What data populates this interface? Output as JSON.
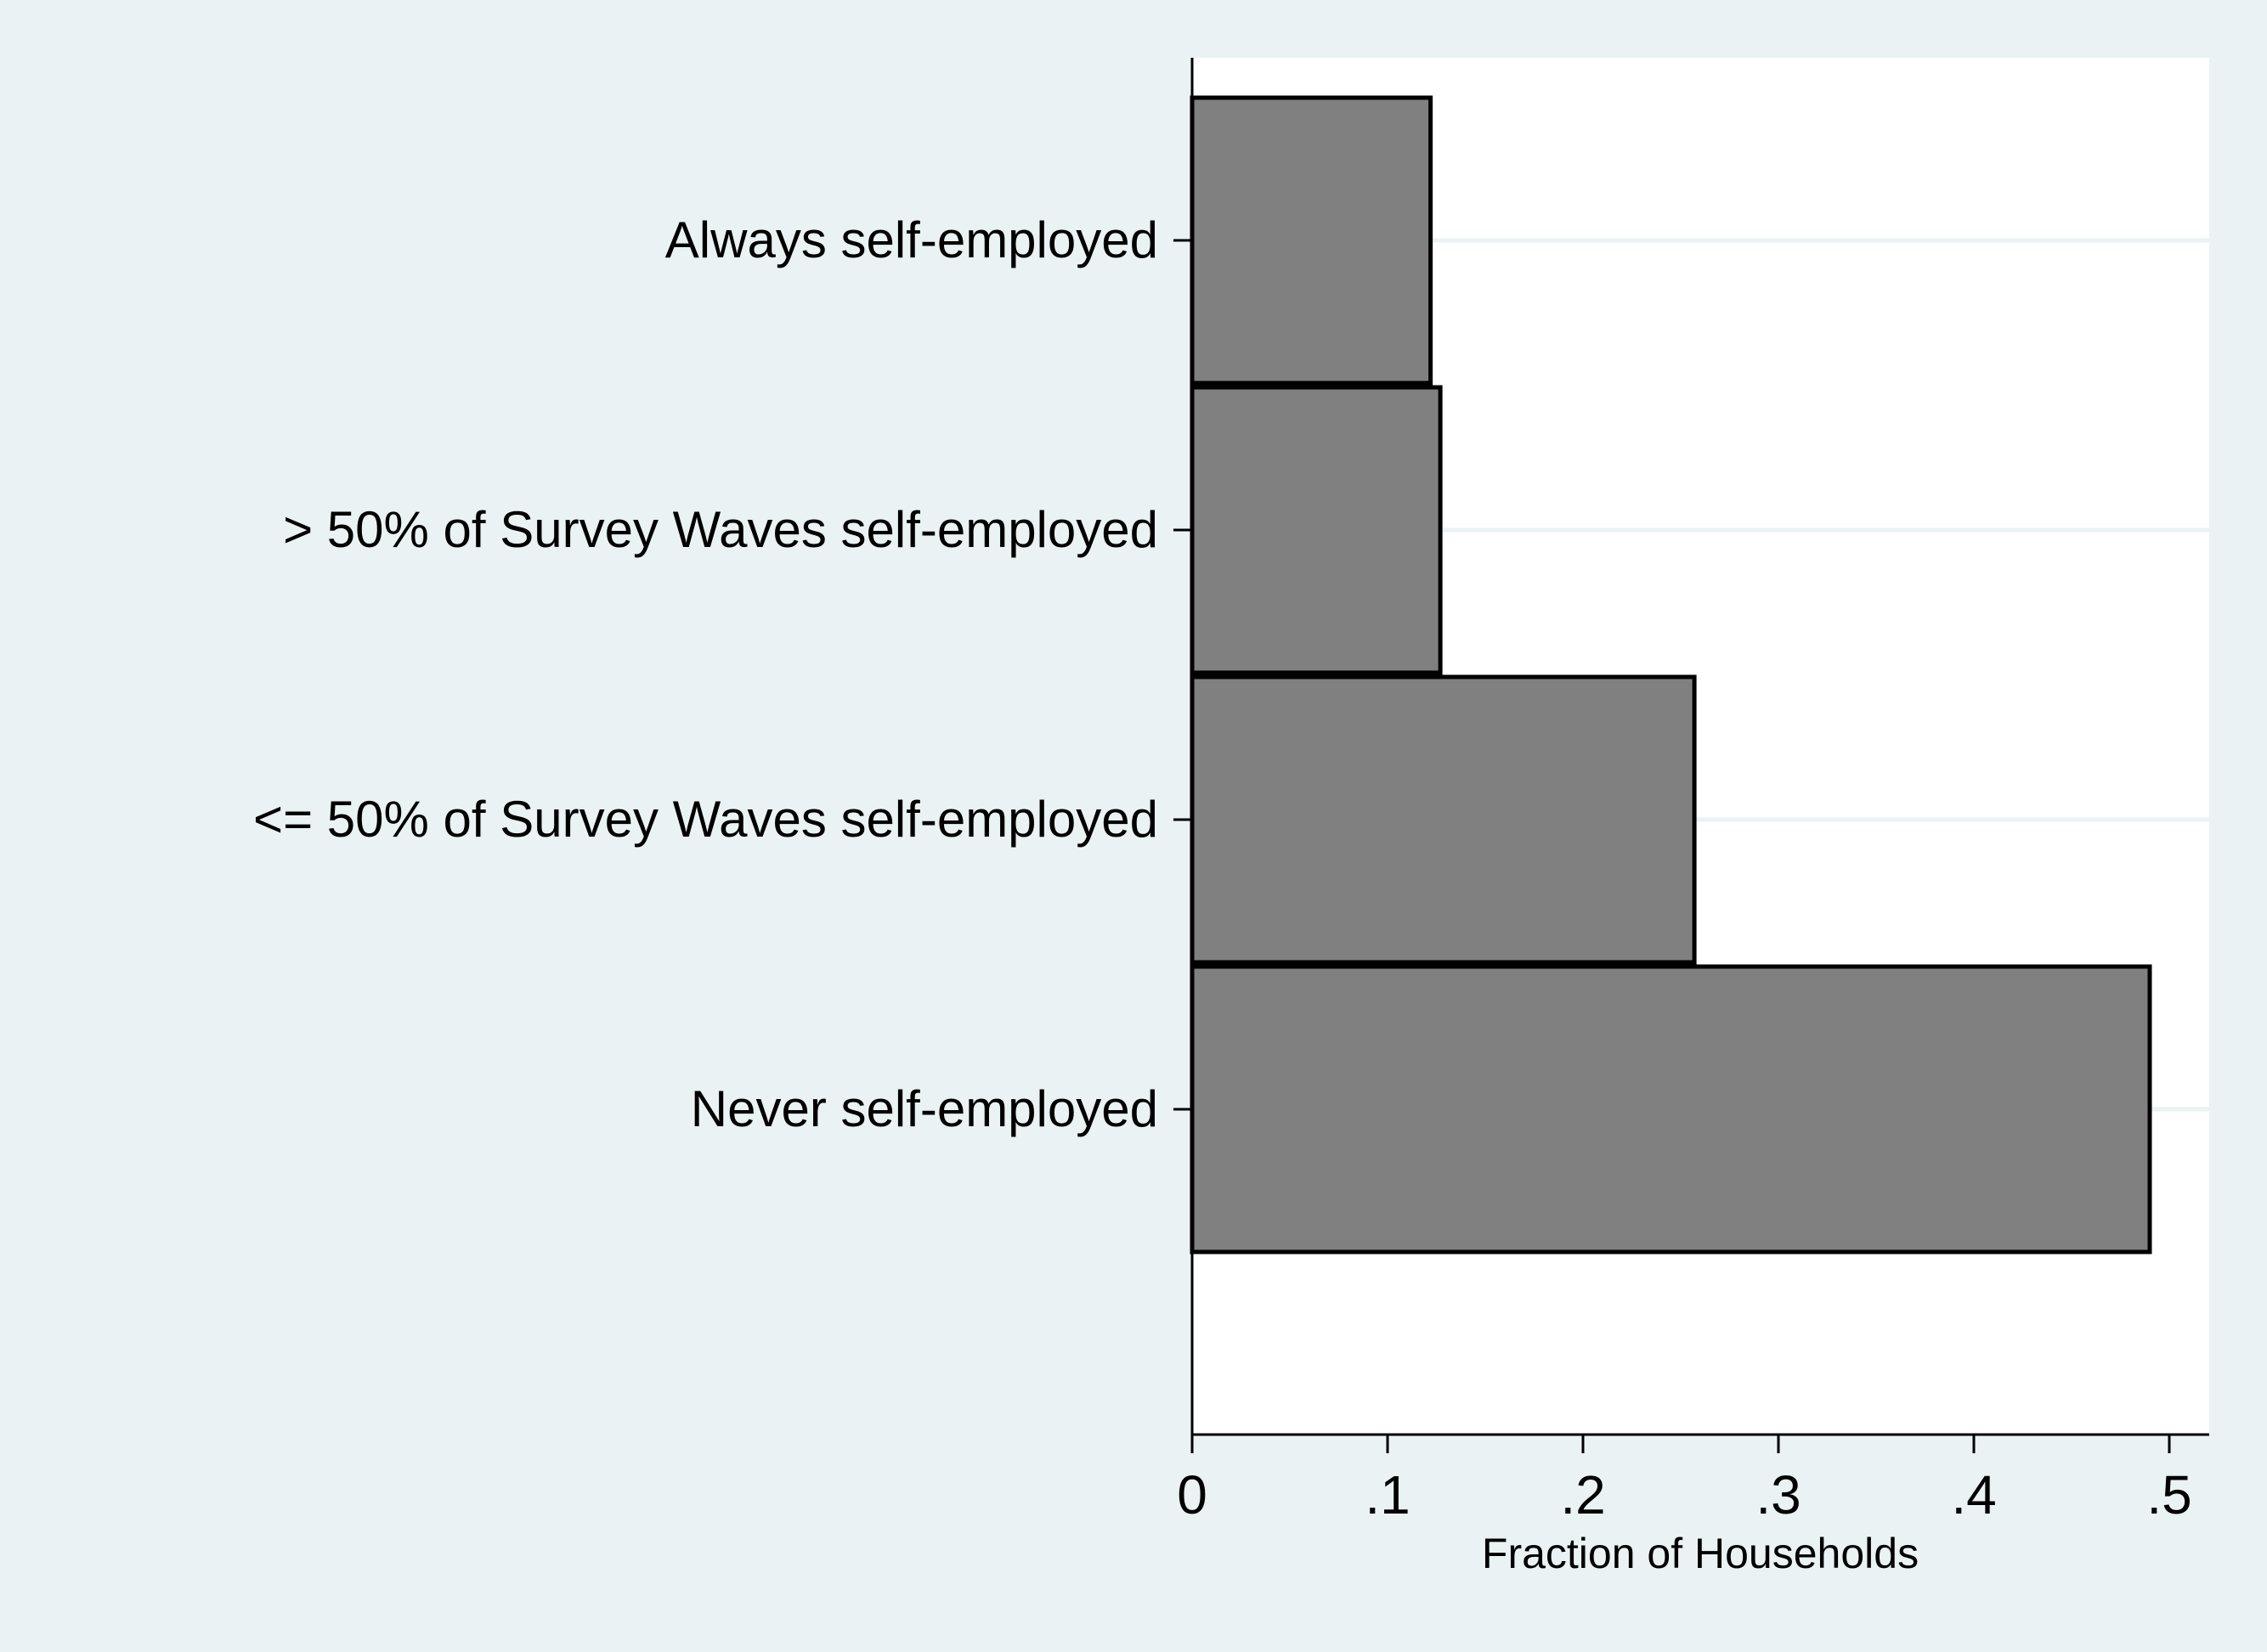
{
  "chart_data": {
    "type": "bar",
    "orientation": "horizontal",
    "title": "",
    "xlabel": "Fraction of Households",
    "ylabel": "",
    "categories": [
      "Always self-employed",
      "> 50% of Survey Waves self-employed",
      "<= 50% of Survey Waves self-employed",
      "Never self-employed"
    ],
    "values": [
      0.122,
      0.127,
      0.257,
      0.49
    ],
    "xlim": [
      0,
      0.52
    ],
    "xticks": [
      0,
      0.1,
      0.2,
      0.3,
      0.4,
      0.5
    ],
    "xtick_labels": [
      "0",
      ".1",
      ".2",
      ".3",
      ".4",
      ".5"
    ],
    "grid": "horizontal lines at category positions",
    "legend": "none",
    "colors": {
      "page_background": "#eaf2f3",
      "plot_background": "#ffffff",
      "bar_fill": "#808080",
      "bar_edge": "#000000",
      "gridline": "#eaf2f3"
    }
  }
}
